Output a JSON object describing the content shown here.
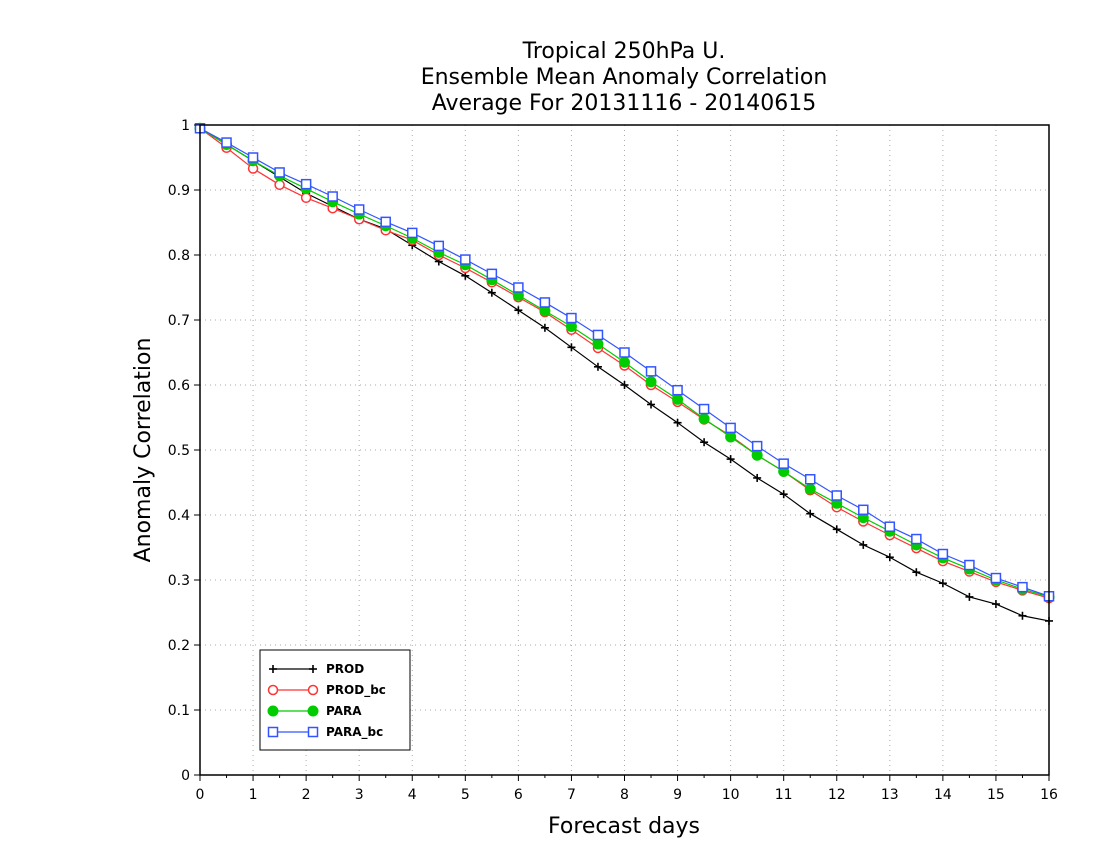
{
  "title_lines": [
    "Tropical 250hPa U.",
    "Ensemble Mean Anomaly Correlation",
    "Average For 20131116 - 20140615"
  ],
  "chart_data": {
    "type": "line",
    "title": "Tropical 250hPa U. Ensemble Mean Anomaly Correlation Average For 20131116 - 20140615",
    "xlabel": "Forecast days",
    "ylabel": "Anomaly Correlation",
    "xlim": [
      0,
      16
    ],
    "ylim": [
      0,
      1
    ],
    "xticks": [
      0,
      1,
      2,
      3,
      4,
      5,
      6,
      7,
      8,
      9,
      10,
      11,
      12,
      13,
      14,
      15,
      16
    ],
    "yticks": [
      0,
      0.1,
      0.2,
      0.3,
      0.4,
      0.5,
      0.6,
      0.7,
      0.8,
      0.9,
      1
    ],
    "grid": true,
    "legend_position": "bottom-left",
    "x": [
      0,
      0.5,
      1,
      1.5,
      2,
      2.5,
      3,
      3.5,
      4,
      4.5,
      5,
      5.5,
      6,
      6.5,
      7,
      7.5,
      8,
      8.5,
      9,
      9.5,
      10,
      10.5,
      11,
      11.5,
      12,
      12.5,
      13,
      13.5,
      14,
      14.5,
      15,
      15.5,
      16
    ],
    "series": [
      {
        "name": "PROD",
        "color": "#000000",
        "marker": "plus",
        "values": [
          0.995,
          0.97,
          0.945,
          0.92,
          0.895,
          0.875,
          0.855,
          0.84,
          0.815,
          0.79,
          0.768,
          0.742,
          0.715,
          0.688,
          0.658,
          0.628,
          0.6,
          0.57,
          0.542,
          0.512,
          0.486,
          0.457,
          0.432,
          0.402,
          0.378,
          0.354,
          0.335,
          0.312,
          0.295,
          0.274,
          0.263,
          0.245,
          0.237
        ]
      },
      {
        "name": "PROD_bc",
        "color": "#ff3333",
        "marker": "open-circle",
        "values": [
          0.995,
          0.965,
          0.933,
          0.908,
          0.888,
          0.872,
          0.855,
          0.838,
          0.823,
          0.8,
          0.78,
          0.758,
          0.735,
          0.712,
          0.685,
          0.657,
          0.63,
          0.6,
          0.574,
          0.547,
          0.522,
          0.492,
          0.467,
          0.438,
          0.412,
          0.39,
          0.369,
          0.349,
          0.329,
          0.313,
          0.297,
          0.284,
          0.272
        ]
      },
      {
        "name": "PARA",
        "color": "#00cc00",
        "marker": "filled-circle",
        "values": [
          0.995,
          0.97,
          0.945,
          0.922,
          0.902,
          0.882,
          0.863,
          0.845,
          0.826,
          0.804,
          0.785,
          0.762,
          0.738,
          0.714,
          0.69,
          0.663,
          0.635,
          0.605,
          0.578,
          0.548,
          0.52,
          0.492,
          0.467,
          0.44,
          0.418,
          0.396,
          0.375,
          0.354,
          0.334,
          0.317,
          0.3,
          0.286,
          0.274
        ]
      },
      {
        "name": "PARA_bc",
        "color": "#3355ff",
        "marker": "open-square",
        "values": [
          0.995,
          0.973,
          0.95,
          0.927,
          0.909,
          0.89,
          0.87,
          0.851,
          0.834,
          0.814,
          0.793,
          0.771,
          0.75,
          0.727,
          0.703,
          0.677,
          0.65,
          0.621,
          0.592,
          0.563,
          0.534,
          0.506,
          0.479,
          0.455,
          0.43,
          0.408,
          0.382,
          0.363,
          0.34,
          0.323,
          0.303,
          0.289,
          0.275
        ]
      }
    ]
  }
}
